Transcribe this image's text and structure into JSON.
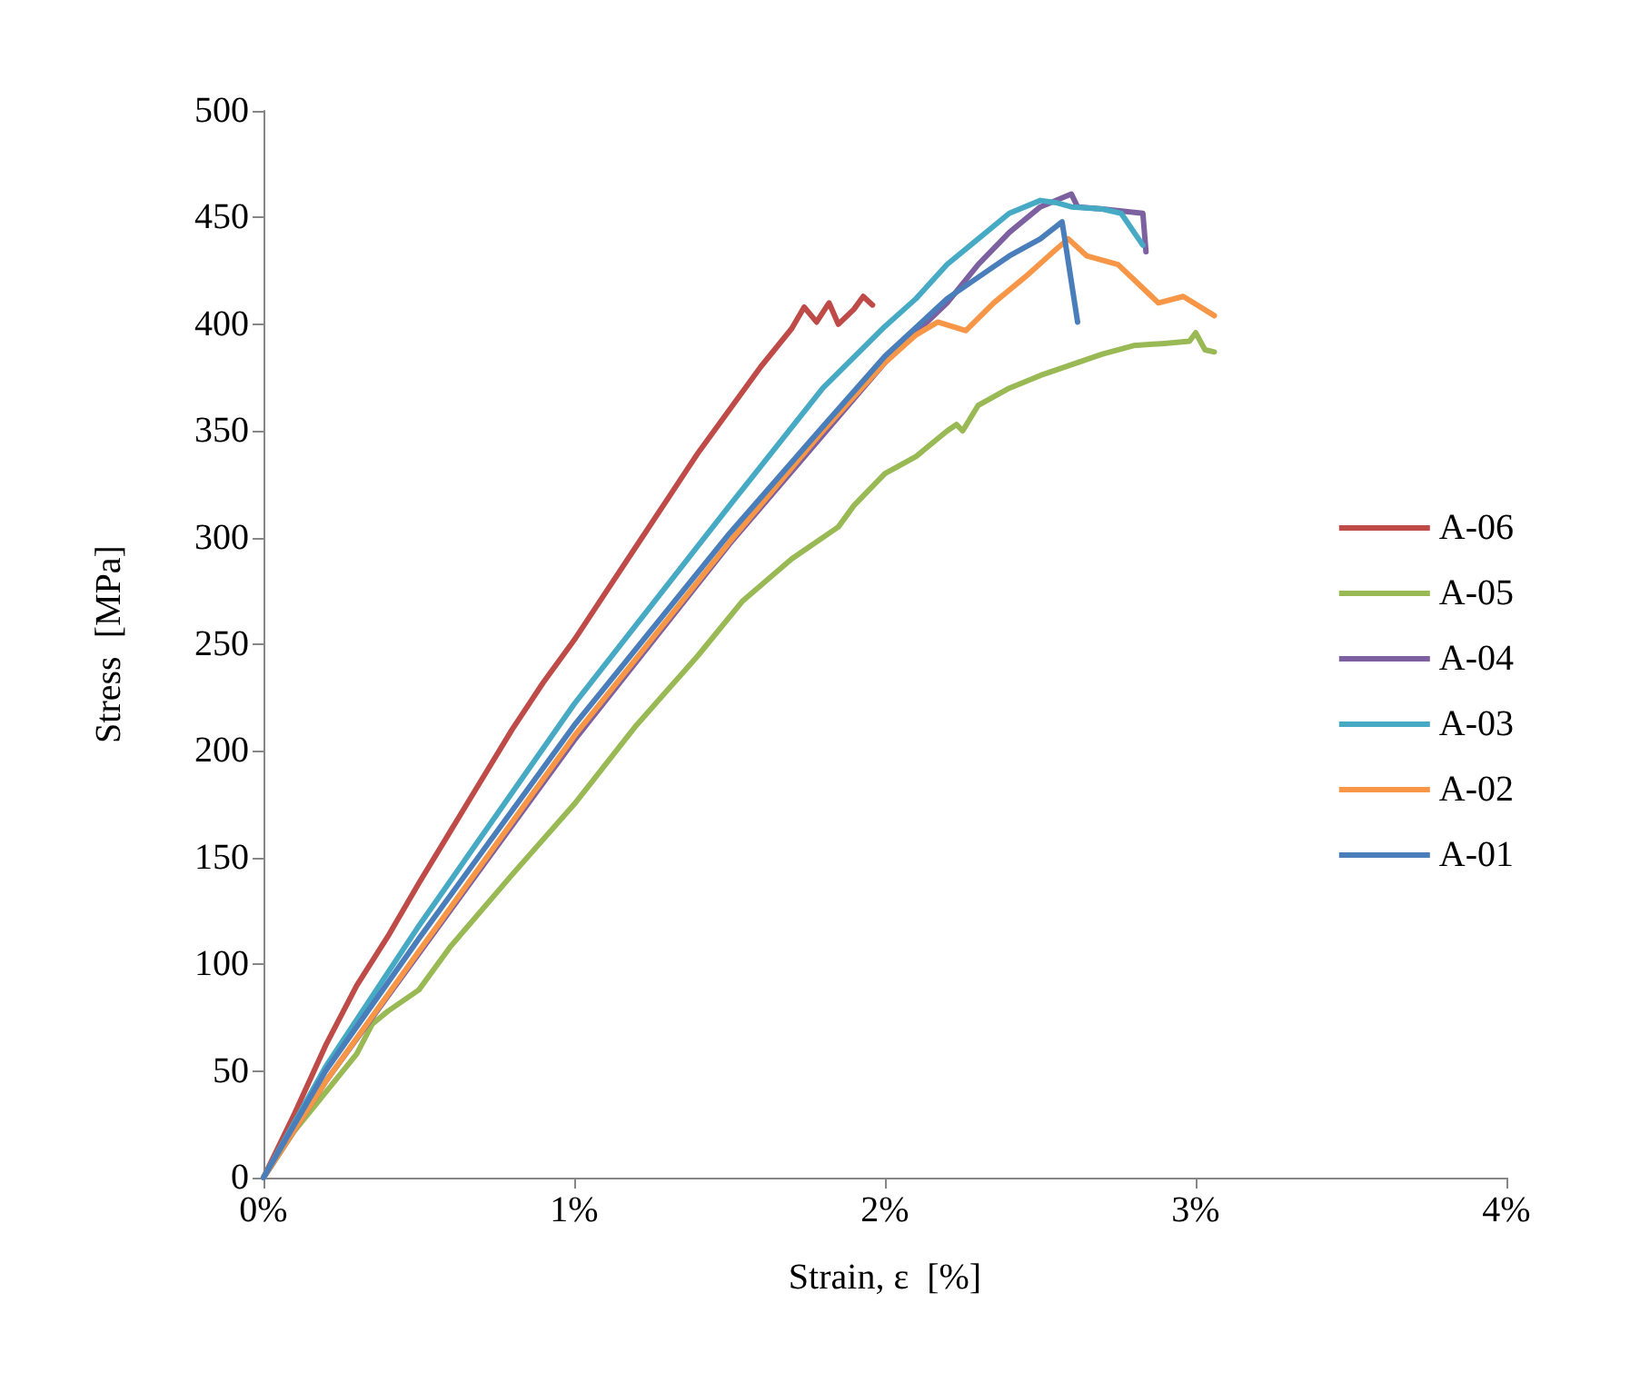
{
  "chart_data": {
    "type": "line",
    "xlabel": "Strain, ε  [%]",
    "ylabel": "Stress  [MPa]",
    "xlim": [
      0,
      4
    ],
    "xticks": [
      {
        "value": 0,
        "label": "0%"
      },
      {
        "value": 1,
        "label": "1%"
      },
      {
        "value": 2,
        "label": "2%"
      },
      {
        "value": 3,
        "label": "3%"
      },
      {
        "value": 4,
        "label": "4%"
      }
    ],
    "ylim": [
      0,
      500
    ],
    "yticks": [
      0,
      50,
      100,
      150,
      200,
      250,
      300,
      350,
      400,
      450,
      500
    ],
    "grid": false,
    "legend": "right",
    "marker": "none",
    "line_style": "solid",
    "series": [
      {
        "name": "A-06",
        "color": "#be4b48",
        "x": [
          0,
          0.1,
          0.2,
          0.3,
          0.4,
          0.5,
          0.6,
          0.7,
          0.8,
          0.9,
          1.0,
          1.1,
          1.2,
          1.3,
          1.4,
          1.5,
          1.6,
          1.7,
          1.74,
          1.78,
          1.82,
          1.85,
          1.9,
          1.93,
          1.96
        ],
        "values": [
          0,
          30,
          62,
          90,
          113,
          138,
          162,
          186,
          210,
          232,
          252,
          274,
          296,
          318,
          340,
          360,
          380,
          398,
          408,
          401,
          410,
          400,
          407,
          413,
          409
        ]
      },
      {
        "name": "A-05",
        "color": "#98b954",
        "x": [
          0,
          0.1,
          0.2,
          0.3,
          0.35,
          0.4,
          0.5,
          0.6,
          0.8,
          1.0,
          1.2,
          1.4,
          1.54,
          1.7,
          1.85,
          1.9,
          2.0,
          2.1,
          2.2,
          2.23,
          2.25,
          2.3,
          2.4,
          2.5,
          2.6,
          2.7,
          2.8,
          2.9,
          2.98,
          3.0,
          3.03,
          3.06
        ],
        "values": [
          0,
          22,
          40,
          58,
          72,
          78,
          88,
          108,
          142,
          175,
          212,
          245,
          270,
          290,
          305,
          315,
          330,
          338,
          350,
          353,
          350,
          362,
          370,
          376,
          381,
          386,
          390,
          391,
          392,
          396,
          388,
          387
        ]
      },
      {
        "name": "A-04",
        "color": "#7d60a0",
        "x": [
          0,
          0.2,
          0.5,
          1.0,
          1.5,
          1.8,
          2.0,
          2.2,
          2.3,
          2.4,
          2.5,
          2.6,
          2.62,
          2.7,
          2.83,
          2.84
        ],
        "values": [
          0,
          45,
          105,
          205,
          297,
          348,
          382,
          410,
          428,
          443,
          455,
          461,
          455,
          454,
          452,
          434
        ]
      },
      {
        "name": "A-03",
        "color": "#46aac5",
        "x": [
          0,
          0.2,
          0.5,
          1.0,
          1.5,
          1.8,
          2.0,
          2.1,
          2.2,
          2.3,
          2.4,
          2.5,
          2.55,
          2.6,
          2.7,
          2.76,
          2.83
        ],
        "values": [
          0,
          52,
          118,
          222,
          315,
          370,
          399,
          412,
          428,
          440,
          452,
          458,
          457,
          455,
          454,
          452,
          437
        ]
      },
      {
        "name": "A-02",
        "color": "#f79646",
        "x": [
          0,
          0.2,
          0.5,
          1.0,
          1.5,
          1.8,
          2.0,
          2.1,
          2.17,
          2.26,
          2.35,
          2.45,
          2.55,
          2.59,
          2.65,
          2.75,
          2.88,
          2.96,
          3.06
        ],
        "values": [
          0,
          45,
          106,
          207,
          298,
          350,
          382,
          395,
          401,
          397,
          410,
          422,
          435,
          440,
          432,
          428,
          410,
          413,
          404
        ]
      },
      {
        "name": "A-01",
        "color": "#4a7ebb",
        "x": [
          0,
          0.2,
          0.5,
          1.0,
          1.5,
          1.8,
          2.0,
          2.2,
          2.33,
          2.4,
          2.5,
          2.57,
          2.62
        ],
        "values": [
          0,
          50,
          112,
          212,
          302,
          352,
          385,
          412,
          425,
          432,
          440,
          448,
          401
        ]
      }
    ]
  }
}
